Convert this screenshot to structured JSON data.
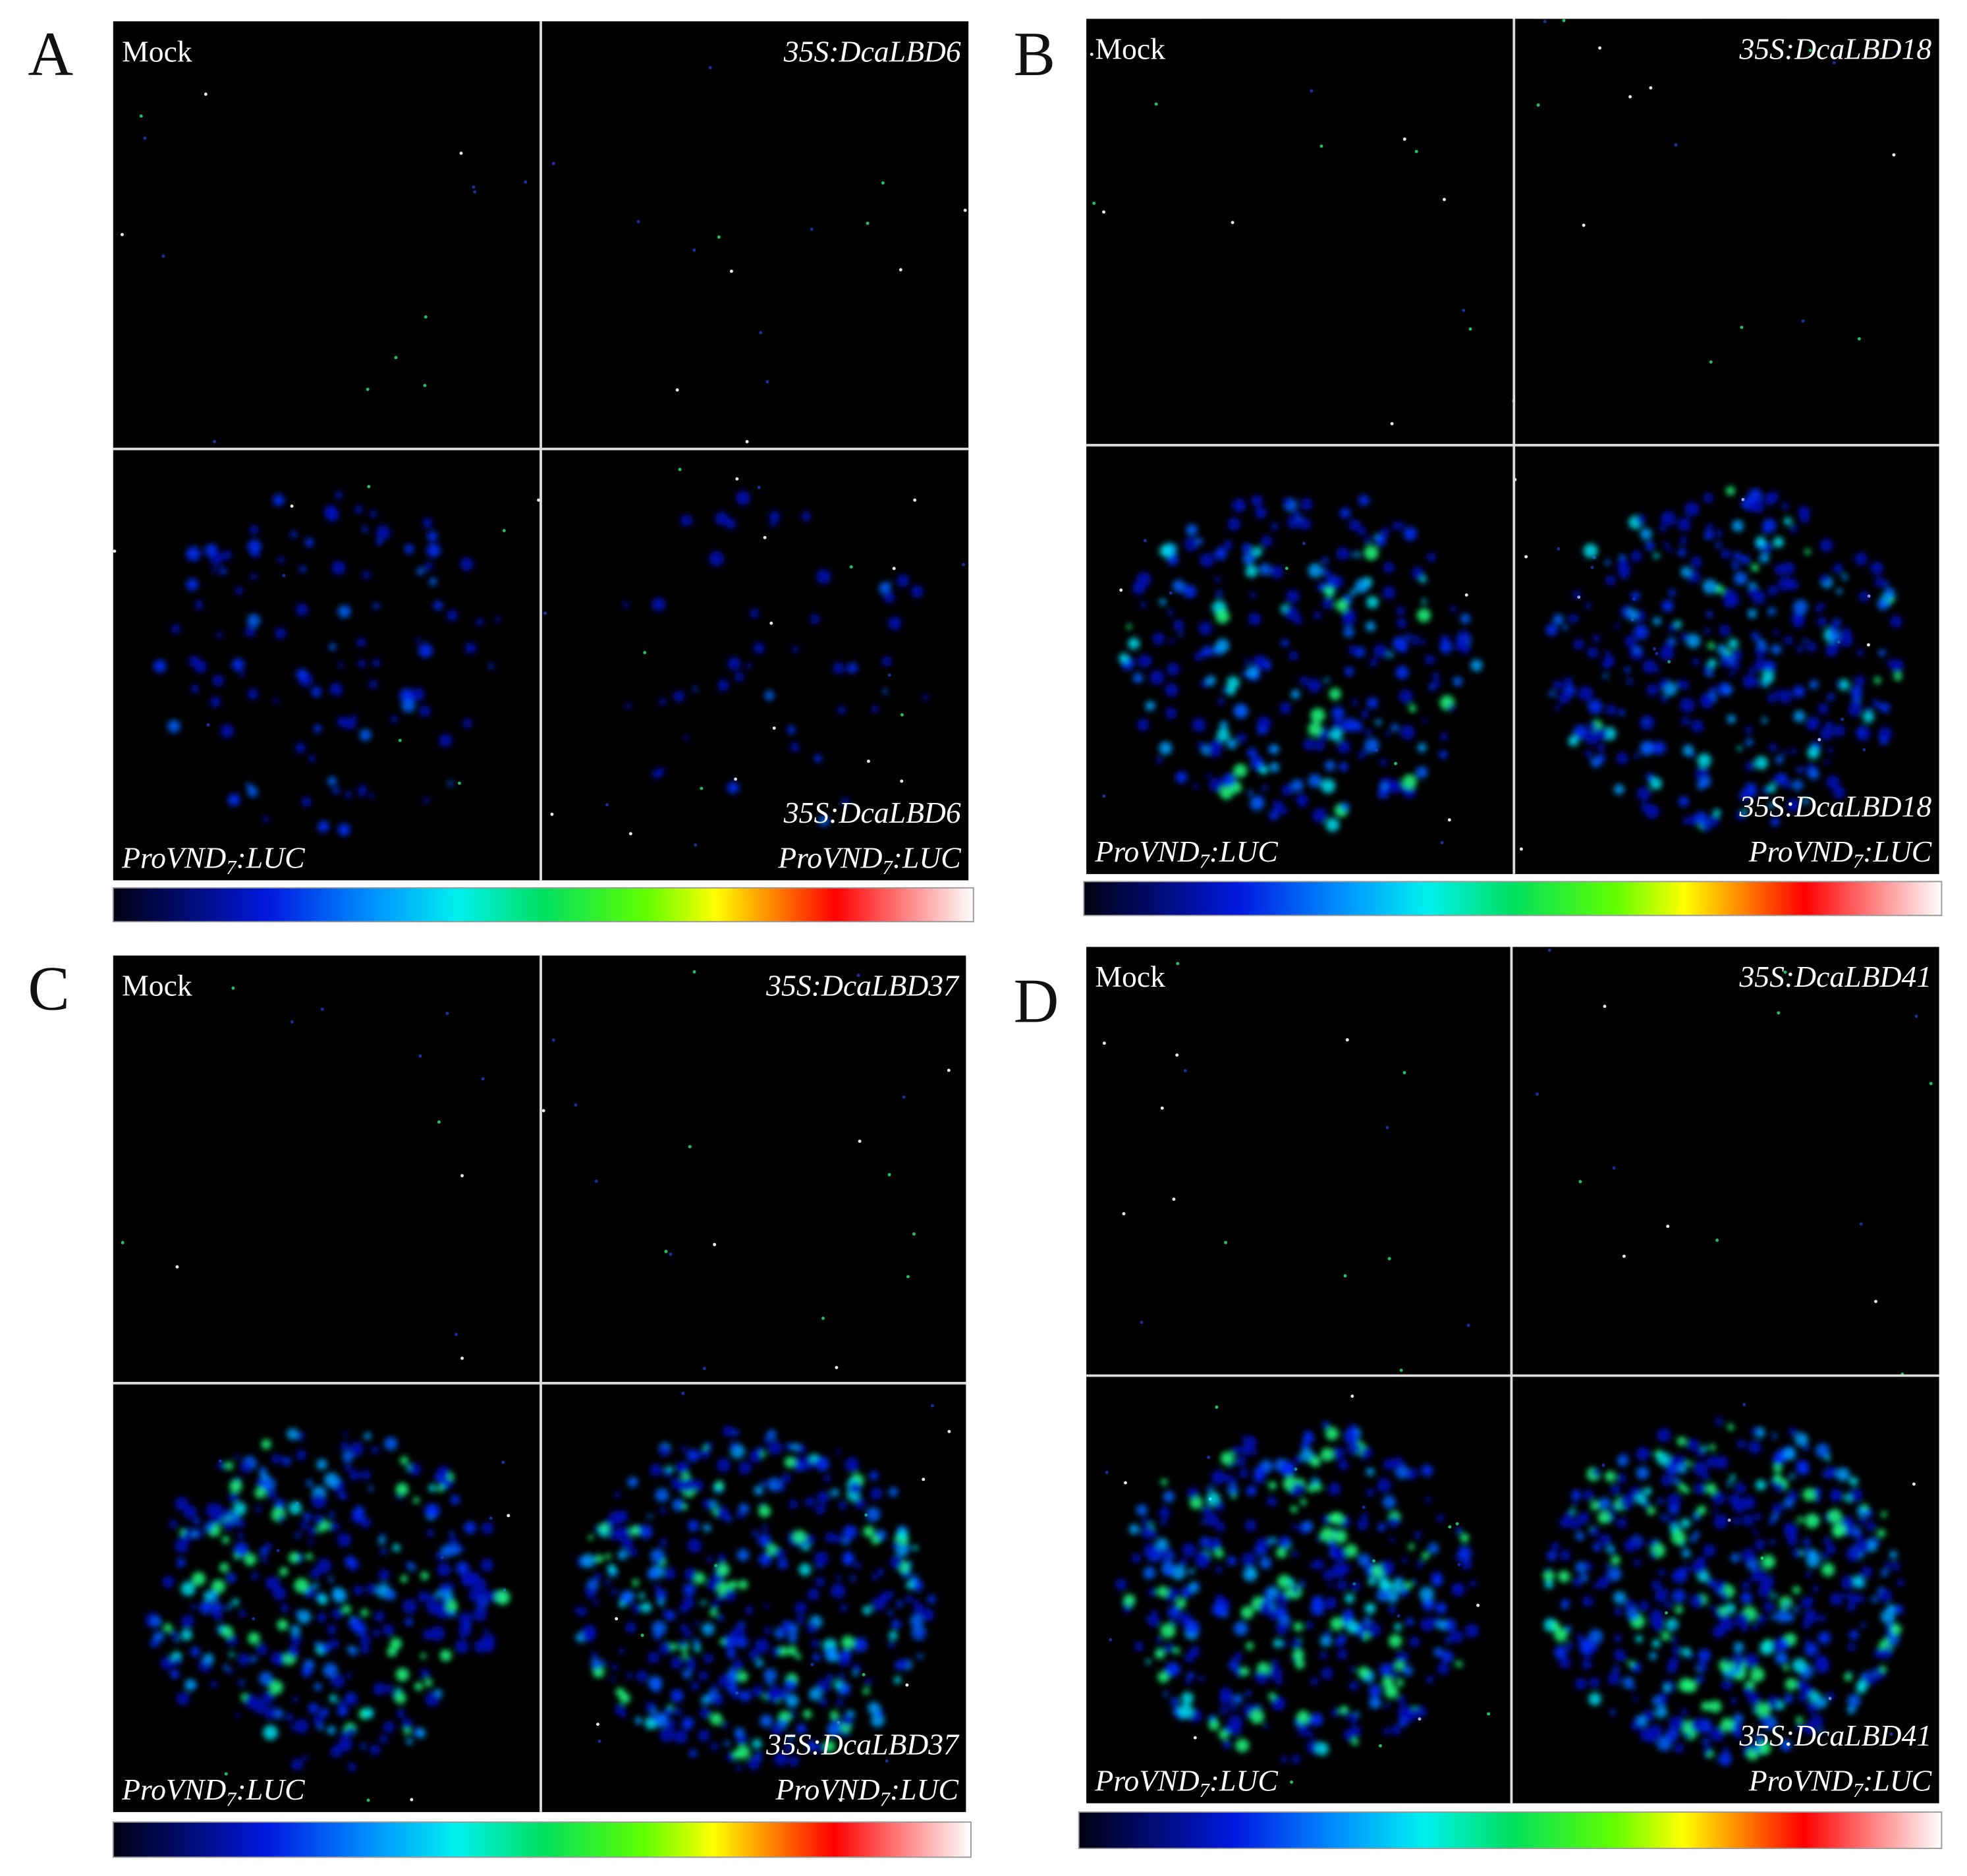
{
  "reporter": {
    "pre": "ProVND",
    "sub": "7",
    "post": ":LUC"
  },
  "panels": [
    {
      "letter": "A",
      "mock": "Mock",
      "effector": "35S:DcaLBD6"
    },
    {
      "letter": "B",
      "mock": "Mock",
      "effector": "35S:DcaLBD18"
    },
    {
      "letter": "C",
      "mock": "Mock",
      "effector": "35S:DcaLBD37"
    },
    {
      "letter": "D",
      "mock": "Mock",
      "effector": "35S:DcaLBD41"
    }
  ]
}
